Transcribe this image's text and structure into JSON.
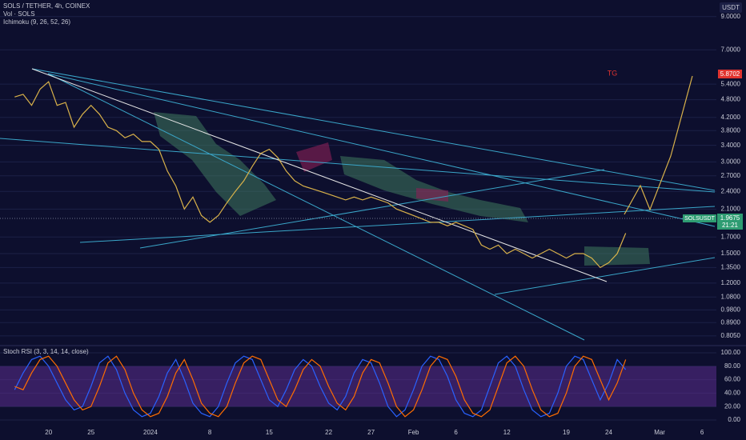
{
  "header": {
    "symbol": "SOLS / TETHER, 4h, COINEX",
    "volume": "Vol · SOLS",
    "indicator": "Ichimoku (9, 26, 52, 26)",
    "currency": "USDT",
    "annotation": "TG",
    "target_price": "5.8702",
    "ticker": "SOLSUSDT",
    "last_price": "1.9675",
    "countdown": "21:21"
  },
  "chart_data": [
    {
      "type": "line",
      "log_scale": true,
      "grid": true,
      "categories": [
        null,
        null,
        null,
        null,
        "20",
        null,
        null,
        null,
        null,
        "25",
        null,
        null,
        null,
        null,
        null,
        null,
        "2024",
        null,
        null,
        null,
        null,
        null,
        null,
        "8",
        null,
        null,
        null,
        null,
        null,
        null,
        "15",
        null,
        null,
        null,
        null,
        null,
        null,
        "22",
        null,
        null,
        null,
        null,
        "27",
        null,
        null,
        null,
        null,
        "Feb",
        null,
        null,
        null,
        null,
        "6",
        null,
        null,
        null,
        null,
        null,
        "12",
        null,
        null,
        null,
        null,
        null,
        null,
        "19",
        null,
        null,
        null,
        null,
        "24",
        null,
        null,
        null,
        null,
        null,
        "Mar",
        null,
        null,
        null,
        null,
        "6",
        null
      ],
      "series": [
        {
          "color": "#d9b24a",
          "values": [
            4.9,
            5.0,
            4.6,
            5.2,
            5.5,
            4.6,
            4.7,
            3.9,
            4.3,
            4.6,
            4.3,
            3.9,
            3.8,
            3.6,
            3.7,
            3.5,
            3.5,
            3.3,
            2.8,
            2.5,
            2.1,
            2.3,
            2.0,
            1.9,
            2.0,
            2.2,
            2.4,
            2.6,
            2.9,
            3.2,
            3.3,
            3.1,
            2.8,
            2.6,
            2.5,
            2.45,
            2.4,
            2.35,
            2.3,
            2.25,
            2.3,
            2.25,
            2.3,
            2.25,
            2.2,
            2.1,
            2.05,
            2.0,
            1.95,
            1.9,
            1.9,
            1.85,
            1.9,
            1.85,
            1.8,
            1.6,
            1.55,
            1.6,
            1.5,
            1.55,
            1.5,
            1.45,
            1.5,
            1.55,
            1.5,
            1.45,
            1.5,
            1.5,
            1.45,
            1.35,
            1.4,
            1.5,
            1.75,
            null,
            null,
            null,
            null,
            null,
            null,
            null,
            null,
            null,
            null
          ]
        }
      ],
      "ylim": [
        0.748,
        10.2
      ],
      "yticks": [
        {
          "value": 9,
          "label": "9.0000"
        },
        {
          "value": 7,
          "label": "7.0000"
        },
        {
          "value": 5.4,
          "label": "5.4000"
        },
        {
          "value": 4.8,
          "label": "4.8000"
        },
        {
          "value": 4.2,
          "label": "4.2000"
        },
        {
          "value": 3.8,
          "label": "3.8000"
        },
        {
          "value": 3.4,
          "label": "3.4000"
        },
        {
          "value": 3.0,
          "label": "3.0000"
        },
        {
          "value": 2.7,
          "label": "2.7000"
        },
        {
          "value": 2.4,
          "label": "2.4000"
        },
        {
          "value": 2.1,
          "label": "2.1000"
        },
        {
          "value": 1.7,
          "label": "1.7000"
        },
        {
          "value": 1.5,
          "label": "1.5000"
        },
        {
          "value": 1.35,
          "label": "1.3500"
        },
        {
          "value": 1.2,
          "label": "1.2000"
        },
        {
          "value": 1.08,
          "label": "1.0800"
        },
        {
          "value": 0.98,
          "label": "0.9800"
        },
        {
          "value": 0.89,
          "label": "0.8900"
        },
        {
          "value": 0.805,
          "label": "0.8050"
        }
      ]
    },
    {
      "type": "line",
      "title": "Stoch RSI (3, 3, 14, 14, close)",
      "grid": true,
      "band_color": "#5b2d8e",
      "series": [
        {
          "color": "#2962ff",
          "values": [
            45,
            70,
            90,
            95,
            80,
            55,
            30,
            15,
            20,
            50,
            85,
            95,
            75,
            40,
            15,
            5,
            10,
            35,
            70,
            90,
            60,
            25,
            10,
            5,
            20,
            55,
            85,
            95,
            90,
            60,
            30,
            20,
            45,
            75,
            90,
            80,
            50,
            25,
            15,
            35,
            70,
            90,
            85,
            55,
            20,
            5,
            15,
            45,
            80,
            95,
            90,
            65,
            30,
            10,
            5,
            15,
            50,
            85,
            95,
            80,
            45,
            15,
            5,
            10,
            40,
            80,
            95,
            90,
            60,
            30,
            55,
            90,
            75,
            null,
            null,
            null,
            null,
            null,
            null,
            null,
            null,
            null,
            null
          ]
        },
        {
          "color": "#ff6d00",
          "values": [
            50,
            45,
            70,
            90,
            95,
            80,
            55,
            30,
            15,
            20,
            50,
            85,
            95,
            75,
            40,
            15,
            5,
            10,
            35,
            70,
            90,
            60,
            25,
            10,
            5,
            20,
            55,
            85,
            95,
            90,
            60,
            30,
            20,
            45,
            75,
            90,
            80,
            50,
            25,
            15,
            35,
            70,
            90,
            85,
            55,
            20,
            5,
            15,
            45,
            80,
            95,
            90,
            65,
            30,
            10,
            5,
            15,
            50,
            85,
            95,
            80,
            45,
            15,
            5,
            10,
            40,
            80,
            95,
            90,
            60,
            30,
            55,
            90,
            null,
            null,
            null,
            null,
            null,
            null,
            null,
            null,
            null,
            null
          ]
        }
      ],
      "ylim": [
        -8.3,
        110.7
      ],
      "yticks": [
        {
          "value": 100,
          "label": "100.00"
        },
        {
          "value": 80,
          "label": "80.00"
        },
        {
          "value": 60,
          "label": "60.00"
        },
        {
          "value": 40,
          "label": "40.00"
        },
        {
          "value": 20,
          "label": "20.00"
        },
        {
          "value": 0,
          "label": "0.00"
        }
      ]
    }
  ]
}
